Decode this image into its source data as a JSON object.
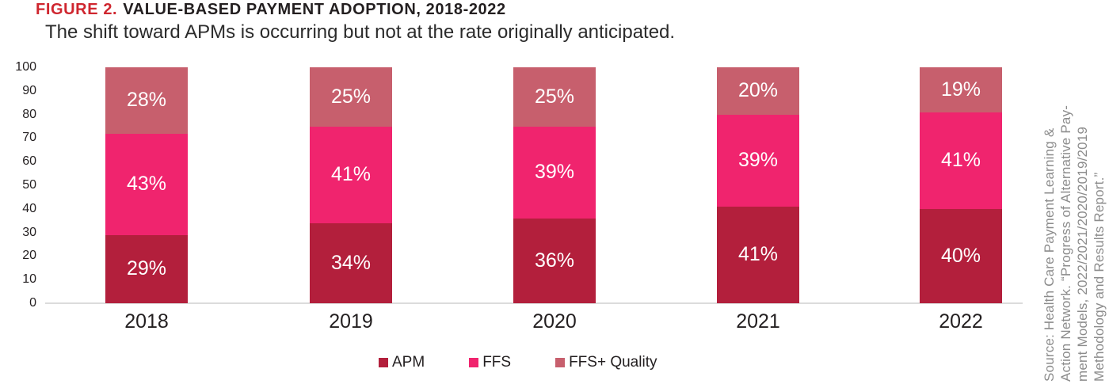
{
  "header": {
    "figure_label": "FIGURE 2.",
    "title": "VALUE-BASED PAYMENT ADOPTION, 2018-2022",
    "subtitle": "The shift toward APMs is occurring but not at the rate originally anticipated."
  },
  "chart_data": {
    "type": "bar",
    "stacked": true,
    "title": "FIGURE 2. VALUE-BASED PAYMENT ADOPTION, 2018-2022",
    "subtitle": "The shift toward APMs is occurring but not at the rate originally anticipated.",
    "categories": [
      "2018",
      "2019",
      "2020",
      "2021",
      "2022"
    ],
    "series": [
      {
        "name": "APM",
        "color": "#b31f3c",
        "values": [
          29,
          34,
          36,
          41,
          40
        ],
        "labels": [
          "29%",
          "34%",
          "36%",
          "41%",
          "40%"
        ]
      },
      {
        "name": "FFS",
        "color": "#f0246e",
        "values": [
          43,
          41,
          39,
          39,
          41
        ],
        "labels": [
          "43%",
          "41%",
          "39%",
          "39%",
          "41%"
        ]
      },
      {
        "name": "FFS+ Quality",
        "color": "#c75f6d",
        "values": [
          28,
          25,
          25,
          20,
          19
        ],
        "labels": [
          "28%",
          "25%",
          "25%",
          "20%",
          "19%"
        ]
      }
    ],
    "xlabel": "",
    "ylabel": "",
    "ylim": [
      0,
      100
    ],
    "yticks": [
      "100",
      "90",
      "80",
      "70",
      "60",
      "50",
      "40",
      "30",
      "20",
      "10",
      "0"
    ],
    "grid": false,
    "legend_position": "bottom",
    "data_labels": "percent-inside"
  },
  "source": {
    "lines": [
      "Source: Health Care Payment Learning &",
      "Action Network. “Progress of Alternative Pay-",
      "ment Models, 2022/2021/2020/2019/2019",
      "Methodology and Results Report.”"
    ]
  },
  "colors": {
    "figure_label": "#cf262f",
    "title_text": "#231f20",
    "axis_line": "#dcdcdc",
    "bar_label": "#ffffff",
    "source_text": "#8c8c8c"
  }
}
